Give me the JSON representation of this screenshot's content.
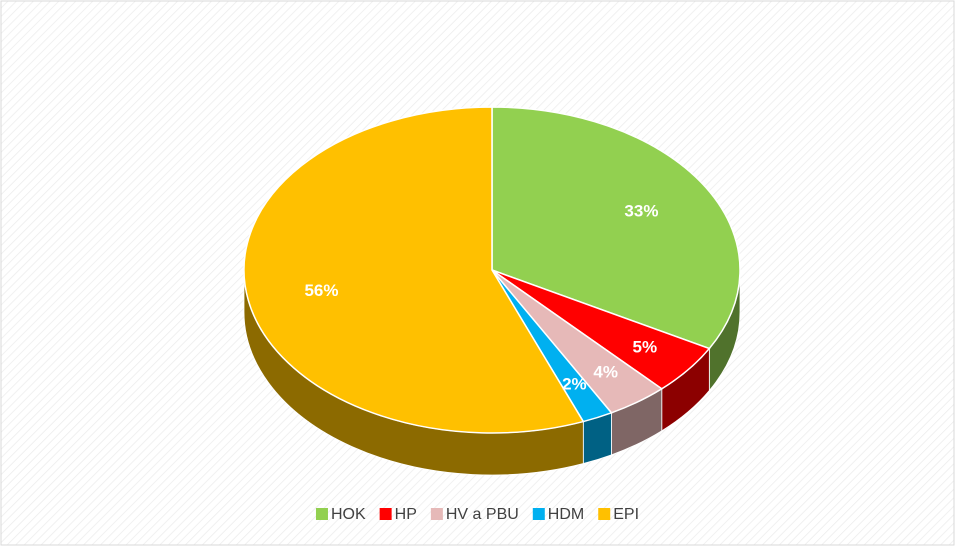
{
  "chart_data": {
    "type": "pie",
    "categories": [
      "HOK",
      "HP",
      "HV a PBU",
      "HDM",
      "EPI"
    ],
    "values": [
      33,
      5,
      4,
      2,
      56
    ],
    "value_labels": [
      "33%",
      "5%",
      "4%",
      "2%",
      "56%"
    ],
    "colors": [
      "#92d050",
      "#ff0000",
      "#e6b9b8",
      "#00b0f0",
      "#ffc000"
    ],
    "legend": "bottom"
  }
}
